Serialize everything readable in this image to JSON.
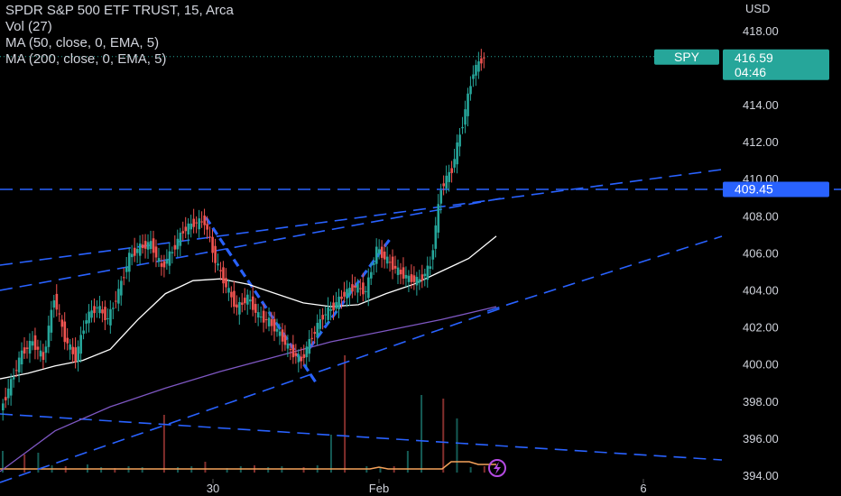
{
  "legend": {
    "title": "SPDR S&P 500 ETF TRUST, 15, Arca",
    "vol": "Vol (27)",
    "ma50": "MA (50, close, 0, EMA, 5)",
    "ma200": "MA (200, close, 0, EMA, 5)"
  },
  "axis": {
    "currency": "USD"
  },
  "badges": {
    "symbol": "SPY",
    "last_price": "416.59",
    "countdown": "04:46",
    "level": "409.45"
  },
  "colors": {
    "up": "#26a69a",
    "down": "#ef5350",
    "trend": "#2962ff",
    "ma50": "#ffffff",
    "ma200": "#7e57c2",
    "volume_ma": "#f5a25a",
    "background": "#000000"
  },
  "chart_data": {
    "type": "candlestick",
    "ylim": [
      394,
      420
    ],
    "grid": false,
    "y_ticks": [
      "418.00",
      "416.00",
      "414.00",
      "412.00",
      "410.00",
      "408.00",
      "406.00",
      "404.00",
      "402.00",
      "400.00",
      "398.00",
      "396.00",
      "394.00"
    ],
    "x_ticks": [
      "30",
      "Feb",
      "6"
    ],
    "last_price": 416.59,
    "horizontal_level": 409.45,
    "close_series": [
      397.5,
      399,
      400.6,
      401.2,
      400.3,
      403.6,
      401.4,
      400.3,
      402.5,
      403.1,
      402.4,
      403.9,
      405.8,
      406.3,
      406.5,
      405.2,
      406.1,
      407.2,
      407.6,
      407.7,
      405.6,
      404.2,
      403.0,
      403.6,
      402.6,
      402.3,
      401.6,
      400.7,
      400.2,
      401.5,
      402.6,
      403.1,
      403.8,
      404.2,
      403.9,
      406.2,
      405.6,
      405.0,
      404.6,
      404.5,
      405.3,
      409.5,
      410.5,
      413.0,
      415.8,
      416.6
    ],
    "ma50_series": [
      399.2,
      399.5,
      399.9,
      400.2,
      400.8,
      402.4,
      403.8,
      404.5,
      404.6,
      404.3,
      403.8,
      403.3,
      403.1,
      403.2,
      403.8,
      404.3,
      405.0,
      405.7,
      406.9
    ],
    "ma200_series": [
      394.2,
      396.4,
      397.7,
      398.7,
      399.6,
      400.4,
      401.2,
      401.8,
      402.4,
      403.1
    ],
    "volume": [
      24,
      20,
      22,
      8,
      7,
      9,
      6,
      5,
      7,
      6,
      64,
      6,
      7,
      12,
      5,
      7,
      8,
      6,
      7,
      6,
      8,
      42,
      130,
      7,
      6,
      7,
      24,
      86,
      82,
      60,
      6,
      7
    ]
  }
}
